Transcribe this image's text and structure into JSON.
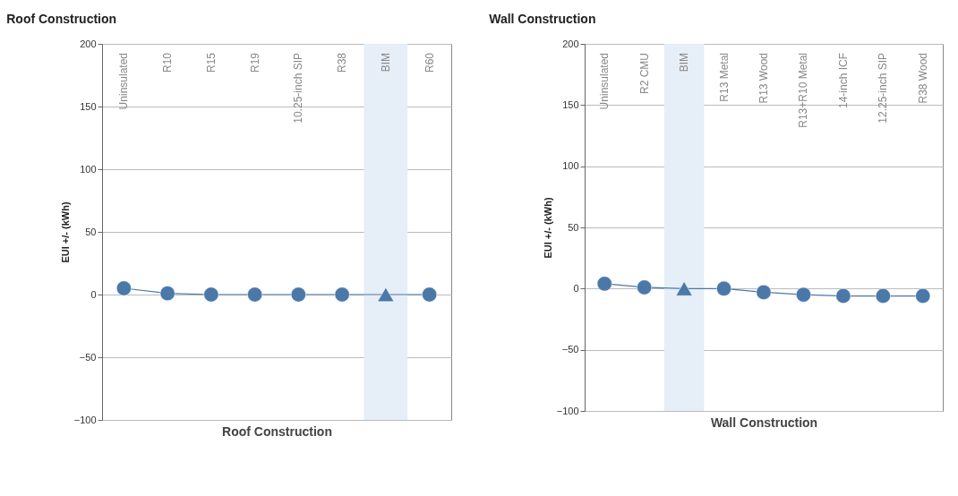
{
  "chart_data": [
    {
      "type": "line",
      "title": "Roof Construction",
      "xlabel": "Roof Construction",
      "ylabel": "EUI +/- (kWh)",
      "categories": [
        "Uninsulated",
        "R10",
        "R15",
        "R19",
        "10.25-inch SIP",
        "R38",
        "BIM",
        "R60"
      ],
      "series": [
        {
          "color": "#4a78a8",
          "marker": "none",
          "values": [
            5,
            1,
            0,
            0,
            0,
            0,
            0,
            0
          ]
        },
        {
          "type": "scatter",
          "color": "#4a78a8",
          "marker": "circle",
          "x": [
            "Uninsulated",
            "R10",
            "R15",
            "R19",
            "10.25-inch SIP",
            "R38",
            "R60"
          ],
          "values": [
            5,
            1,
            0,
            0,
            0,
            0,
            0
          ]
        },
        {
          "type": "scatter",
          "color": "#4a78a8",
          "marker": "triangle",
          "x": [
            "BIM"
          ],
          "values": [
            0
          ]
        }
      ],
      "bands": [
        {
          "axis": "x",
          "from": "BIM",
          "to": "BIM",
          "color": "#e6eef7"
        }
      ],
      "ylim": [
        -100,
        200
      ],
      "yticks": [
        -100,
        -50,
        0,
        50,
        100,
        150,
        200
      ],
      "grid": "y"
    },
    {
      "type": "line",
      "title": "Wall Construction",
      "xlabel": "Wall Construction",
      "ylabel": "EUI +/- (kWh)",
      "categories": [
        "Uninsulated",
        "R2 CMU",
        "BIM",
        "R13 Metal",
        "R13 Wood",
        "R13+R10 Metal",
        "14-inch ICF",
        "12.25-inch SIP",
        "R38 Wood"
      ],
      "series": [
        {
          "color": "#4a78a8",
          "marker": "none",
          "values": [
            4,
            1,
            0,
            0,
            -3,
            -5,
            -6,
            -6,
            -6
          ]
        },
        {
          "type": "scatter",
          "color": "#4a78a8",
          "marker": "circle",
          "x": [
            "Uninsulated",
            "R2 CMU",
            "R13 Metal",
            "R13 Wood",
            "R13+R10 Metal",
            "14-inch ICF",
            "12.25-inch SIP",
            "R38 Wood"
          ],
          "values": [
            4,
            1,
            0,
            -3,
            -5,
            -6,
            -6,
            -6
          ]
        },
        {
          "type": "scatter",
          "color": "#4a78a8",
          "marker": "triangle",
          "x": [
            "BIM"
          ],
          "values": [
            0
          ]
        }
      ],
      "bands": [
        {
          "axis": "x",
          "from": "BIM",
          "to": "BIM",
          "color": "#e6eef7"
        }
      ],
      "ylim": [
        -100,
        200
      ],
      "yticks": [
        -100,
        -50,
        0,
        50,
        100,
        150,
        200
      ],
      "grid": "y"
    }
  ]
}
